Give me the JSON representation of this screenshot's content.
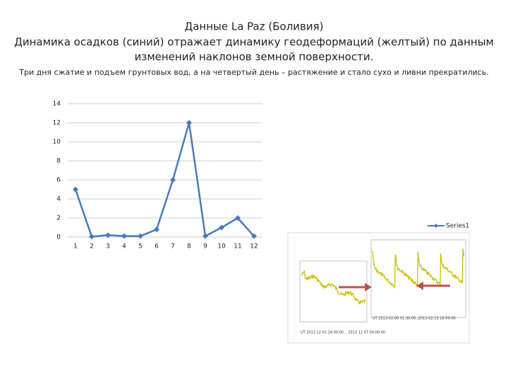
{
  "title_lines": [
    "Данные La Paz (Боливия)",
    "Динамика осадков (синий) отражает динамику геодеформаций (желтый) по данным",
    "изменений наклонов земной поверхности."
  ],
  "subtitle": "Три дня сжатие и подъем грунтовых вод, а на четвертый день – растяжение и стало сухо и ливни прекратились.",
  "image_captions": [
    "UT 2013 12 01 24:00:00 .. 2013 12 07 04:00:00",
    "UT 2013-02-06 01:30:00..2013-02-13 16:00:00"
  ],
  "chart_data": {
    "type": "line",
    "categories": [
      "1",
      "2",
      "3",
      "4",
      "5",
      "6",
      "7",
      "8",
      "9",
      "10",
      "11",
      "12"
    ],
    "series": [
      {
        "name": "Series1",
        "color": "#4a7ab5",
        "values": [
          5,
          0.05,
          0.2,
          0.1,
          0.1,
          0.8,
          6,
          12,
          0.1,
          1,
          2,
          0.1
        ]
      }
    ],
    "ylim": [
      0,
      14
    ],
    "yticks": [
      0,
      2,
      4,
      6,
      8,
      10,
      12,
      14
    ],
    "grid": true,
    "legend": "right"
  }
}
